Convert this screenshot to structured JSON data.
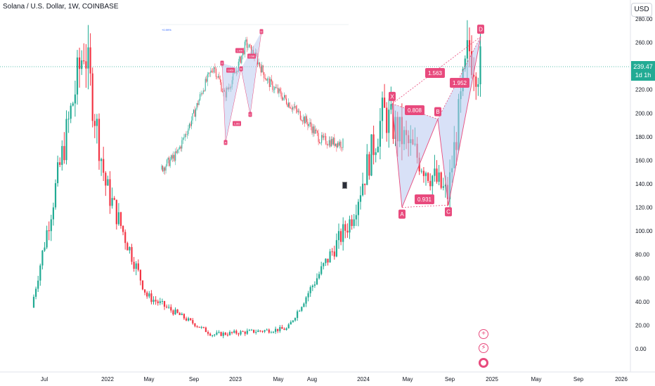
{
  "header": {
    "symbol_title": "Solana / U.S. Dollar, 1W, COINBASE",
    "currency": "USD"
  },
  "price_tag": {
    "price": "239.47",
    "countdown": "1d 1h"
  },
  "icons": [
    "plus-icon",
    "lightning-icon",
    "flag-icon"
  ],
  "colors": {
    "up": "#22ab94",
    "down": "#f23645",
    "pattern_fill": "#b8c8f0",
    "pattern_line": "#e84a7d",
    "pattern_label": "#e84a7d",
    "price_line": "#22ab94",
    "background": "#ffffff"
  },
  "chart_data": [
    {
      "type": "candlestick",
      "title": "Solana / U.S. Dollar, 1W, COINBASE",
      "y_axis": {
        "ticks": [
          "0.00",
          "20.00",
          "40.00",
          "60.00",
          "80.00",
          "100.00",
          "120.00",
          "140.00",
          "160.00",
          "180.00",
          "200.00",
          "220.00",
          "240.00",
          "260.00",
          "280.00"
        ],
        "range": [
          -10,
          285
        ],
        "position": "right"
      },
      "x_axis": {
        "ticks": [
          "Jul",
          "2022",
          "May",
          "Sep",
          "2023",
          "May",
          "Aug",
          "2024",
          "May",
          "Sep",
          "2025",
          "May",
          "Sep",
          "2026"
        ]
      },
      "key_points": [
        {
          "date": "2021-06",
          "price": 35
        },
        {
          "date": "2021-11",
          "price": 258
        },
        {
          "date": "2022-01",
          "price": 140
        },
        {
          "date": "2022-05",
          "price": 45
        },
        {
          "date": "2022-11",
          "price": 12
        },
        {
          "date": "2023-06",
          "price": 17
        },
        {
          "date": "2023-12",
          "price": 110
        },
        {
          "date": "2024-03",
          "price": 200
        },
        {
          "date": "2024-09",
          "price": 130
        },
        {
          "date": "2024-11",
          "price": 255
        },
        {
          "date": "2024-12",
          "price": 239.47
        }
      ],
      "last_price": 239.47,
      "grid": false,
      "harmonic_pattern": {
        "points": [
          {
            "label": "X",
            "price": 208
          },
          {
            "label": "A",
            "price": 120
          },
          {
            "label": "B",
            "price": 195
          },
          {
            "label": "C",
            "price": 122
          },
          {
            "label": "D",
            "price": 265
          }
        ],
        "ratios": [
          "0.808",
          "0.931",
          "1.563",
          "1.952"
        ]
      }
    },
    {
      "type": "candlestick",
      "title": "",
      "note_label": "+0.99%",
      "key_points": [
        {
          "t": 0,
          "v": 10
        },
        {
          "t": 15,
          "v": 30
        },
        {
          "t": 30,
          "v": 80
        },
        {
          "t": 40,
          "v": 120
        },
        {
          "t": 50,
          "v": 150
        },
        {
          "t": 60,
          "v": 110
        },
        {
          "t": 70,
          "v": 140
        },
        {
          "t": 80,
          "v": 180
        },
        {
          "t": 90,
          "v": 160
        },
        {
          "t": 100,
          "v": 130
        },
        {
          "t": 120,
          "v": 100
        },
        {
          "t": 140,
          "v": 70
        },
        {
          "t": 150,
          "v": 50
        },
        {
          "t": 170,
          "v": 45
        }
      ],
      "harmonic_pattern": {
        "labels": [
          "X",
          "A",
          "B",
          "C",
          "D"
        ],
        "ratios": [
          "0.863",
          "1.900",
          "2.096",
          "1.381"
        ]
      }
    }
  ]
}
